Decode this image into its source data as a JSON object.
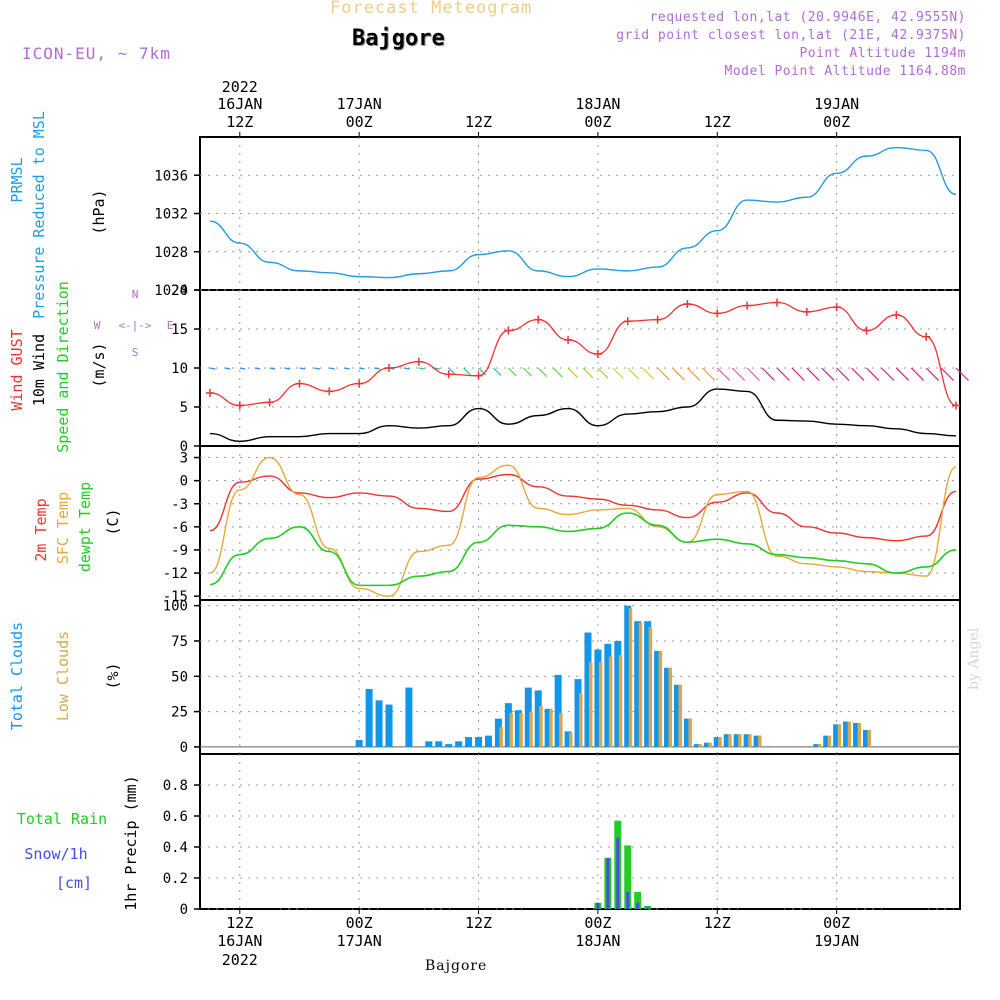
{
  "header": {
    "title": "Forecast Meteogram",
    "station": "Bajgore",
    "model": "ICON-EU, ~ 7km",
    "requested": "requested lon,lat (20.9946E, 42.9555N)",
    "grid_point": "grid point closest lon,lat (21E, 42.9375N)",
    "point_altitude": "Point Altitude 1194m",
    "model_altitude": "Model Point Altitude 1164.88m"
  },
  "byline": "by Angel",
  "footer_station": "Bajgore",
  "colors": {
    "pressure": "#1e9ee0",
    "gust": "#ee3333",
    "wind": "#000000",
    "temp": "#ee3333",
    "sfc": "#e8a838",
    "dewpt": "#22cc22",
    "total_clouds": "#1496e8",
    "low_clouds": "#d8a850",
    "rain": "#22cc22",
    "snow": "#4a4ae8",
    "axis_label_purple": "#b36bd6"
  },
  "chart_data": [
    {
      "id": "pressure",
      "type": "line",
      "ylabel_lines": [
        "PRMSL",
        "Pressure Reduced to MSL"
      ],
      "unit": "(hPa)",
      "ylim": [
        1024,
        1040
      ],
      "yticks": [
        "1024",
        "1028",
        "1032",
        "1036"
      ],
      "x_hours": [
        0,
        3,
        6,
        9,
        12,
        15,
        18,
        21,
        24,
        27,
        30,
        33,
        36,
        39,
        42,
        45,
        48,
        51,
        54,
        57,
        60,
        63,
        66,
        69,
        72,
        75
      ],
      "series": [
        {
          "values": [
            1031.2,
            1028.9,
            1026.9,
            1026.0,
            1025.8,
            1025.4,
            1025.3,
            1025.7,
            1026.0,
            1027.7,
            1028.1,
            1026.0,
            1025.4,
            1026.2,
            1026.0,
            1026.4,
            1028.4,
            1030.2,
            1033.4,
            1033.2,
            1033.7,
            1036.2,
            1038.0,
            1038.9,
            1038.6,
            1034.0
          ]
        }
      ]
    },
    {
      "id": "wind",
      "type": "line",
      "ylabel_lines": [
        "Wind GUST",
        "10m Wind",
        "Speed and Direction"
      ],
      "unit": "(m/s)",
      "compass": [
        "W",
        "<-|->",
        "E",
        "N",
        "S"
      ],
      "ylim": [
        0,
        20
      ],
      "yticks": [
        "0",
        "5",
        "10",
        "15",
        "20"
      ],
      "x_hours": [
        0,
        3,
        6,
        9,
        12,
        15,
        18,
        21,
        24,
        27,
        30,
        33,
        36,
        39,
        42,
        45,
        48,
        51,
        54,
        57,
        60,
        63,
        66,
        69,
        72,
        75
      ],
      "series": [
        {
          "name": "Wind GUST",
          "values": [
            6.8,
            5.2,
            5.6,
            8.0,
            7.0,
            8.0,
            10.0,
            10.8,
            9.2,
            9.0,
            14.8,
            16.2,
            13.6,
            11.8,
            16.0,
            16.2,
            18.2,
            17.0,
            18.0,
            18.4,
            17.2,
            17.8,
            14.8,
            16.8,
            14.0,
            5.2
          ]
        },
        {
          "name": "10m Wind",
          "values": [
            1.6,
            0.6,
            1.2,
            1.2,
            1.6,
            1.6,
            2.6,
            2.3,
            2.6,
            4.8,
            2.8,
            3.9,
            4.8,
            2.6,
            4.1,
            4.4,
            5.0,
            7.3,
            7.0,
            3.3,
            3.2,
            2.8,
            2.6,
            2.2,
            1.6,
            1.3
          ]
        }
      ]
    },
    {
      "id": "temperature",
      "type": "line",
      "ylabel_lines": [
        "2m Temp",
        "SFC Temp",
        "dewpt Temp"
      ],
      "unit": "(C)",
      "ylim": [
        -15.5,
        4.5
      ],
      "yticks": [
        "-15",
        "-12",
        "-9",
        "-6",
        "-3",
        "0",
        "3"
      ],
      "x_hours": [
        0,
        3,
        6,
        9,
        12,
        15,
        18,
        21,
        24,
        27,
        30,
        33,
        36,
        39,
        42,
        45,
        48,
        51,
        54,
        57,
        60,
        63,
        66,
        69,
        72,
        75
      ],
      "series": [
        {
          "name": "2m Temp",
          "values": [
            -6.5,
            -0.2,
            0.6,
            -1.6,
            -2.2,
            -1.6,
            -2.0,
            -3.6,
            -4.0,
            0.2,
            0.8,
            -0.8,
            -2.0,
            -2.4,
            -3.2,
            -3.8,
            -4.8,
            -2.8,
            -1.6,
            -4.2,
            -6.0,
            -6.8,
            -7.4,
            -7.8,
            -7.2,
            -1.4
          ]
        },
        {
          "name": "SFC Temp",
          "values": [
            -12.0,
            -1.2,
            3.0,
            -1.8,
            -8.8,
            -14.0,
            -15.0,
            -9.2,
            -8.4,
            0.4,
            2.0,
            -3.6,
            -4.4,
            -3.8,
            -3.6,
            -6.0,
            -8.0,
            -1.8,
            -1.4,
            -9.8,
            -10.8,
            -11.2,
            -11.8,
            -12.0,
            -12.4,
            1.8
          ]
        },
        {
          "name": "dewpt Temp",
          "values": [
            -13.5,
            -9.6,
            -7.5,
            -6.0,
            -9.2,
            -13.6,
            -13.6,
            -12.4,
            -11.8,
            -8.0,
            -5.8,
            -6.0,
            -6.6,
            -6.2,
            -4.2,
            -5.8,
            -8.0,
            -7.6,
            -8.2,
            -9.6,
            -10.0,
            -10.4,
            -10.8,
            -12.0,
            -11.2,
            -9.0
          ]
        }
      ]
    },
    {
      "id": "clouds",
      "type": "bar",
      "ylabel_lines": [
        "Total Clouds",
        "Low Clouds"
      ],
      "unit": "(%)",
      "ylim": [
        -5,
        104
      ],
      "yticks": [
        "0",
        "25",
        "50",
        "75",
        "100"
      ],
      "x_hours": [
        15,
        16,
        17,
        18,
        19,
        20,
        21,
        22,
        23,
        24,
        25,
        26,
        27,
        28,
        29,
        30,
        31,
        32,
        33,
        34,
        35,
        36,
        37,
        38,
        39,
        40,
        41,
        42,
        43,
        44,
        45,
        46,
        47,
        48,
        49,
        50,
        51,
        52,
        53,
        54,
        55,
        56,
        57,
        58,
        59,
        60,
        61,
        62,
        63,
        64,
        65,
        66
      ],
      "series": [
        {
          "name": "Total Clouds",
          "values": [
            5,
            41,
            33,
            30,
            0,
            42,
            0,
            4,
            4,
            2,
            4,
            7,
            7,
            8,
            20,
            31,
            26,
            42,
            40,
            27,
            51,
            11,
            48,
            81,
            69,
            73,
            75,
            100,
            89,
            89,
            68,
            56,
            44,
            20,
            2,
            3,
            7,
            9,
            9,
            9,
            8,
            0,
            0,
            0,
            0,
            0,
            2,
            8,
            16,
            18,
            17,
            12
          ]
        },
        {
          "name": "Low Clouds",
          "values": [
            0,
            0,
            0,
            0,
            0,
            0,
            0,
            0,
            0,
            0,
            0,
            0,
            0,
            0,
            14,
            24,
            24,
            25,
            29,
            27,
            24,
            10,
            38,
            60,
            60,
            64,
            65,
            98,
            88,
            85,
            68,
            56,
            44,
            20,
            2,
            3,
            7,
            9,
            9,
            9,
            8,
            0,
            0,
            0,
            0,
            0,
            2,
            8,
            16,
            18,
            17,
            12
          ]
        }
      ]
    },
    {
      "id": "precip",
      "type": "bar",
      "ylabel_lines": [
        "Total  Rain",
        "Snow/1h",
        "[cm]"
      ],
      "unit": "1hr Precip (mm)",
      "ylim": [
        0,
        1.0
      ],
      "yticks": [
        "0",
        "0.2",
        "0.4",
        "0.6",
        "0.8"
      ],
      "x_hours": [
        39,
        40,
        41,
        42,
        43,
        44
      ],
      "series": [
        {
          "name": "Total Rain",
          "values": [
            0.04,
            0.33,
            0.57,
            0.41,
            0.11,
            0.02
          ]
        },
        {
          "name": "Snow/1h",
          "values": [
            0.04,
            0.33,
            0.46,
            0.11,
            0.04,
            0.01
          ]
        }
      ]
    }
  ],
  "time_axis": {
    "year_top": "2022",
    "top_labels": [
      {
        "hour": 3,
        "line1": "16JAN",
        "line2": "12Z"
      },
      {
        "hour": 15,
        "line1": "17JAN",
        "line2": "00Z"
      },
      {
        "hour": 27,
        "line1": "",
        "line2": "12Z"
      },
      {
        "hour": 39,
        "line1": "18JAN",
        "line2": "00Z"
      },
      {
        "hour": 51,
        "line1": "",
        "line2": "12Z"
      },
      {
        "hour": 63,
        "line1": "19JAN",
        "line2": "00Z"
      }
    ],
    "bottom_labels": [
      {
        "hour": 3,
        "line1": "12Z",
        "line2": "16JAN",
        "line3": "2022"
      },
      {
        "hour": 15,
        "line1": "00Z",
        "line2": "17JAN",
        "line3": ""
      },
      {
        "hour": 27,
        "line1": "12Z",
        "line2": "",
        "line3": ""
      },
      {
        "hour": 39,
        "line1": "00Z",
        "line2": "18JAN",
        "line3": ""
      },
      {
        "hour": 51,
        "line1": "12Z",
        "line2": "",
        "line3": ""
      },
      {
        "hour": 63,
        "line1": "00Z",
        "line2": "19JAN",
        "line3": ""
      }
    ]
  }
}
